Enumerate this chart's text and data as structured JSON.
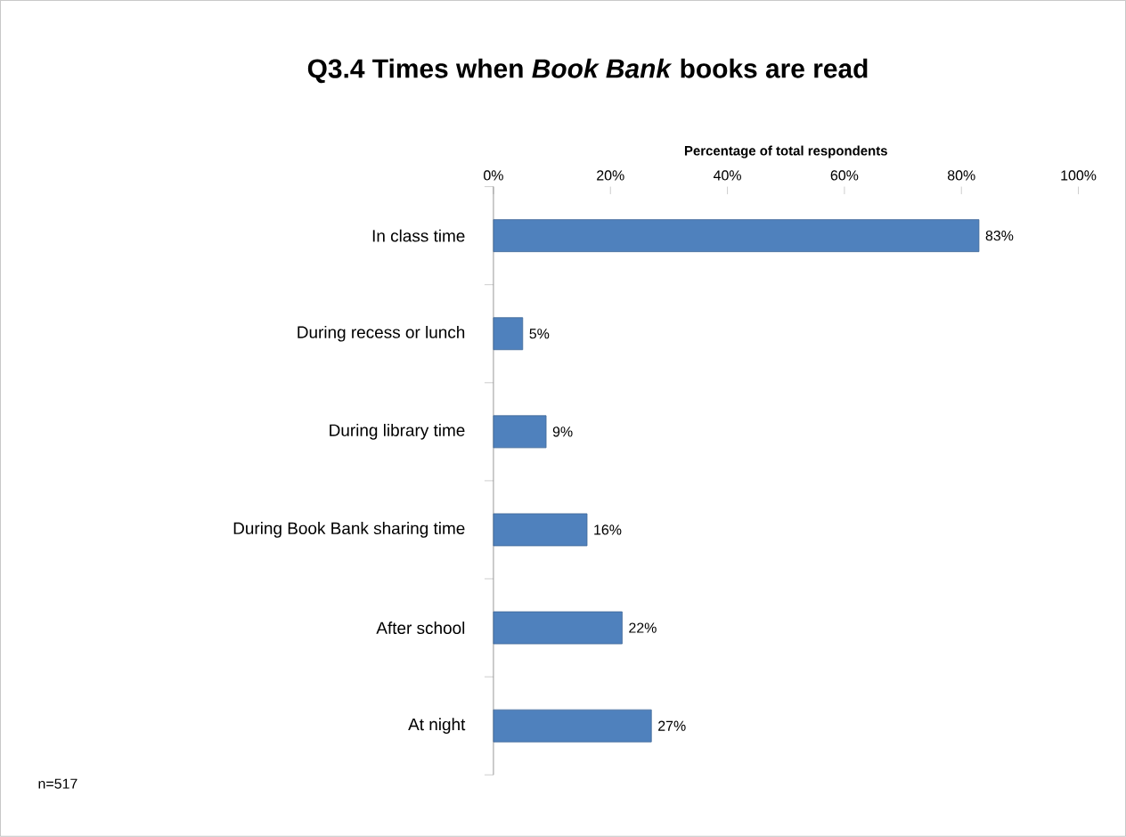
{
  "chart_data": {
    "type": "bar",
    "orientation": "horizontal",
    "title": "Q3.4 Times when *Book Bank* books are read",
    "xlabel": "Percentage of total respondents",
    "categories": [
      "In class time",
      "During recess or lunch",
      "During library time",
      "During Book Bank sharing time",
      "After school",
      "At night"
    ],
    "values": [
      83,
      5,
      9,
      16,
      22,
      27
    ],
    "value_labels": [
      "83%",
      "5%",
      "9%",
      "16%",
      "22%",
      "27%"
    ],
    "color": "#4f81bd",
    "xlim": [
      0,
      100
    ],
    "xticks": [
      {
        "value": 0,
        "label": "0%"
      },
      {
        "value": 20,
        "label": "20%"
      },
      {
        "value": 40,
        "label": "40%"
      },
      {
        "value": 60,
        "label": "60%"
      },
      {
        "value": 80,
        "label": "80%"
      },
      {
        "value": 100,
        "label": "100%"
      }
    ],
    "grid": false,
    "annotations": [
      "n=517"
    ]
  }
}
